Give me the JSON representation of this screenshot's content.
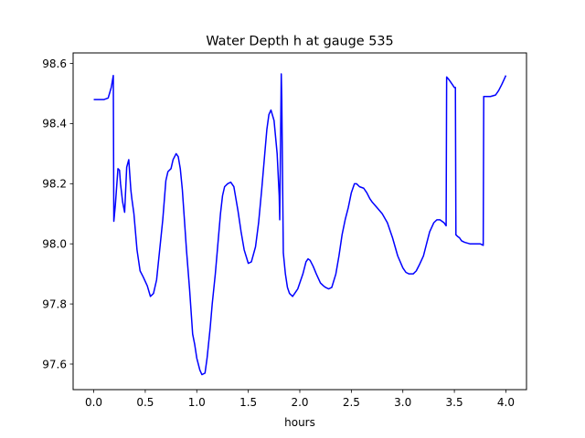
{
  "chart_data": {
    "type": "line",
    "title": "Water Depth h at gauge 535",
    "xlabel": "hours",
    "ylabel": "",
    "xlim": [
      -0.2,
      4.2
    ],
    "ylim": [
      97.515,
      98.635
    ],
    "grid": false,
    "x_ticks": [
      {
        "value": 0.0,
        "label": "0.0"
      },
      {
        "value": 0.5,
        "label": "0.5"
      },
      {
        "value": 1.0,
        "label": "1.0"
      },
      {
        "value": 1.5,
        "label": "1.5"
      },
      {
        "value": 2.0,
        "label": "2.0"
      },
      {
        "value": 2.5,
        "label": "2.5"
      },
      {
        "value": 3.0,
        "label": "3.0"
      },
      {
        "value": 3.5,
        "label": "3.5"
      },
      {
        "value": 4.0,
        "label": "4.0"
      }
    ],
    "y_ticks": [
      {
        "value": 97.6,
        "label": "97.6"
      },
      {
        "value": 97.8,
        "label": "97.8"
      },
      {
        "value": 98.0,
        "label": "98.0"
      },
      {
        "value": 98.2,
        "label": "98.2"
      },
      {
        "value": 98.4,
        "label": "98.4"
      },
      {
        "value": 98.6,
        "label": "98.6"
      }
    ],
    "series": [
      {
        "color": "#0000ff",
        "x": [
          0.0,
          0.05,
          0.1,
          0.14,
          0.17,
          0.19,
          0.195,
          0.21,
          0.235,
          0.25,
          0.26,
          0.28,
          0.3,
          0.32,
          0.34,
          0.36,
          0.37,
          0.39,
          0.42,
          0.45,
          0.48,
          0.52,
          0.55,
          0.58,
          0.61,
          0.64,
          0.67,
          0.7,
          0.72,
          0.75,
          0.77,
          0.8,
          0.82,
          0.84,
          0.86,
          0.88,
          0.9,
          0.93,
          0.96,
          0.98,
          1.0,
          1.03,
          1.05,
          1.08,
          1.1,
          1.13,
          1.15,
          1.18,
          1.2,
          1.23,
          1.25,
          1.27,
          1.3,
          1.33,
          1.36,
          1.4,
          1.43,
          1.46,
          1.5,
          1.53,
          1.57,
          1.6,
          1.63,
          1.66,
          1.68,
          1.7,
          1.72,
          1.75,
          1.78,
          1.8,
          1.805,
          1.82,
          1.825,
          1.84,
          1.86,
          1.88,
          1.9,
          1.93,
          1.96,
          1.98,
          2.0,
          2.03,
          2.06,
          2.08,
          2.1,
          2.13,
          2.16,
          2.2,
          2.23,
          2.25,
          2.28,
          2.31,
          2.35,
          2.38,
          2.41,
          2.44,
          2.47,
          2.5,
          2.53,
          2.55,
          2.58,
          2.62,
          2.65,
          2.68,
          2.7,
          2.75,
          2.8,
          2.85,
          2.9,
          2.95,
          3.0,
          3.03,
          3.06,
          3.1,
          3.13,
          3.16,
          3.2,
          3.23,
          3.26,
          3.3,
          3.33,
          3.36,
          3.4,
          3.42,
          3.425,
          3.45,
          3.48,
          3.5,
          3.51,
          3.515,
          3.53,
          3.55,
          3.57,
          3.6,
          3.65,
          3.7,
          3.75,
          3.78,
          3.785,
          3.8,
          3.85,
          3.9,
          3.93,
          3.96,
          3.98,
          4.0
        ],
        "y": [
          98.48,
          98.48,
          98.48,
          98.485,
          98.52,
          98.56,
          98.075,
          98.13,
          98.25,
          98.245,
          98.2,
          98.14,
          98.105,
          98.255,
          98.28,
          98.18,
          98.15,
          98.1,
          97.98,
          97.91,
          97.89,
          97.86,
          97.825,
          97.835,
          97.88,
          97.98,
          98.08,
          98.21,
          98.24,
          98.25,
          98.28,
          98.3,
          98.29,
          98.25,
          98.18,
          98.08,
          97.98,
          97.85,
          97.7,
          97.665,
          97.62,
          97.58,
          97.565,
          97.57,
          97.62,
          97.72,
          97.8,
          97.9,
          97.98,
          98.1,
          98.16,
          98.19,
          98.2,
          98.205,
          98.19,
          98.11,
          98.04,
          97.98,
          97.935,
          97.94,
          97.99,
          98.07,
          98.18,
          98.3,
          98.38,
          98.43,
          98.445,
          98.41,
          98.3,
          98.16,
          98.08,
          98.565,
          98.48,
          97.97,
          97.9,
          97.855,
          97.835,
          97.825,
          97.84,
          97.85,
          97.87,
          97.9,
          97.94,
          97.95,
          97.945,
          97.925,
          97.9,
          97.87,
          97.86,
          97.855,
          97.85,
          97.855,
          97.9,
          97.96,
          98.03,
          98.08,
          98.12,
          98.17,
          98.2,
          98.2,
          98.19,
          98.185,
          98.17,
          98.15,
          98.14,
          98.12,
          98.1,
          98.07,
          98.02,
          97.96,
          97.92,
          97.905,
          97.9,
          97.9,
          97.91,
          97.93,
          97.96,
          98.0,
          98.04,
          98.07,
          98.08,
          98.08,
          98.07,
          98.06,
          98.555,
          98.545,
          98.53,
          98.52,
          98.52,
          98.03,
          98.025,
          98.02,
          98.01,
          98.005,
          98.0,
          98.0,
          98.0,
          97.995,
          98.49,
          98.49,
          98.49,
          98.495,
          98.51,
          98.53,
          98.545,
          98.56
        ]
      }
    ]
  }
}
